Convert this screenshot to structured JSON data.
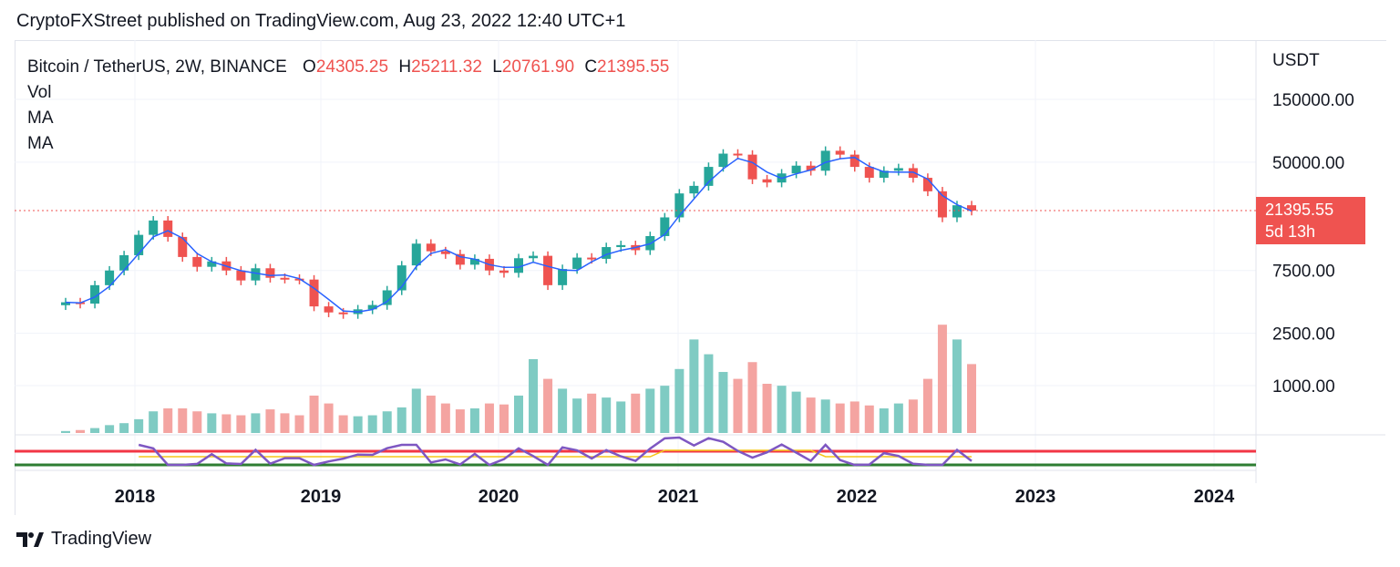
{
  "header": {
    "publisher_line": "CryptoFXStreet published on TradingView.com, Aug 23, 2022 12:40 UTC+1"
  },
  "legend": {
    "symbol": "Bitcoin / TetherUS, 2W, BINANCE",
    "open_label": "O",
    "open": "24305.25",
    "high_label": "H",
    "high": "25211.32",
    "low_label": "L",
    "low": "20761.90",
    "close_label": "C",
    "close": "21395.55",
    "indicators": [
      "Vol",
      "MA",
      "MA"
    ]
  },
  "price_axis": {
    "unit": "USDT",
    "ticks": [
      "150000.00",
      "50000.00",
      "7500.00",
      "2500.00",
      "1000.00"
    ]
  },
  "last_price": {
    "value": "21395.55",
    "countdown": "5d 13h"
  },
  "footer": {
    "brand": "TradingView"
  },
  "colors": {
    "up": "#26a69a",
    "down": "#ef5350",
    "up_vol": "#7fcbc3",
    "down_vol": "#f4a4a1",
    "ma": "#2962ff",
    "rsi": "#7e57c2",
    "rsi_ma": "#f5c518",
    "upper_band": "#f23645",
    "lower_band": "#2e7d32"
  },
  "chart_data": {
    "type": "candlestick",
    "title": "Bitcoin / TetherUS, 2W, BINANCE",
    "x_ticks": [
      "2018",
      "2019",
      "2020",
      "2021",
      "2022",
      "2023",
      "2024"
    ],
    "y_scale": "log",
    "price_series": [
      {
        "date": "2017-08",
        "close": 4300
      },
      {
        "date": "2017-09",
        "close": 4200
      },
      {
        "date": "2017-10",
        "close": 5800
      },
      {
        "date": "2017-11",
        "close": 7500
      },
      {
        "date": "2017-11b",
        "close": 9800
      },
      {
        "date": "2017-12",
        "close": 14000
      },
      {
        "date": "2017-12b",
        "close": 18000
      },
      {
        "date": "2018-01",
        "close": 13500
      },
      {
        "date": "2018-02",
        "close": 9500
      },
      {
        "date": "2018-03",
        "close": 8000
      },
      {
        "date": "2018-04",
        "close": 8800
      },
      {
        "date": "2018-05",
        "close": 7500
      },
      {
        "date": "2018-06",
        "close": 6300
      },
      {
        "date": "2018-07",
        "close": 7800
      },
      {
        "date": "2018-08",
        "close": 6600
      },
      {
        "date": "2018-09",
        "close": 6500
      },
      {
        "date": "2018-10",
        "close": 6400
      },
      {
        "date": "2018-11",
        "close": 4000
      },
      {
        "date": "2018-12",
        "close": 3600
      },
      {
        "date": "2019-01",
        "close": 3500
      },
      {
        "date": "2019-02",
        "close": 3800
      },
      {
        "date": "2019-03",
        "close": 4100
      },
      {
        "date": "2019-04",
        "close": 5300
      },
      {
        "date": "2019-05",
        "close": 8200
      },
      {
        "date": "2019-06",
        "close": 12000
      },
      {
        "date": "2019-07",
        "close": 10500
      },
      {
        "date": "2019-08",
        "close": 10000
      },
      {
        "date": "2019-09",
        "close": 8300
      },
      {
        "date": "2019-10",
        "close": 9200
      },
      {
        "date": "2019-11",
        "close": 7500
      },
      {
        "date": "2019-12",
        "close": 7200
      },
      {
        "date": "2020-01",
        "close": 9300
      },
      {
        "date": "2020-02",
        "close": 9700
      },
      {
        "date": "2020-03",
        "close": 5800
      },
      {
        "date": "2020-04",
        "close": 7700
      },
      {
        "date": "2020-05",
        "close": 9400
      },
      {
        "date": "2020-06",
        "close": 9200
      },
      {
        "date": "2020-07",
        "close": 11300
      },
      {
        "date": "2020-08",
        "close": 11700
      },
      {
        "date": "2020-09",
        "close": 10700
      },
      {
        "date": "2020-10",
        "close": 13700
      },
      {
        "date": "2020-11",
        "close": 19000
      },
      {
        "date": "2020-12",
        "close": 28900
      },
      {
        "date": "2021-01",
        "close": 33000
      },
      {
        "date": "2021-02",
        "close": 46000
      },
      {
        "date": "2021-03",
        "close": 58000
      },
      {
        "date": "2021-04",
        "close": 57000
      },
      {
        "date": "2021-05",
        "close": 37000
      },
      {
        "date": "2021-06",
        "close": 35000
      },
      {
        "date": "2021-07",
        "close": 41000
      },
      {
        "date": "2021-08",
        "close": 47000
      },
      {
        "date": "2021-09",
        "close": 43000
      },
      {
        "date": "2021-10",
        "close": 61000
      },
      {
        "date": "2021-11",
        "close": 57000
      },
      {
        "date": "2021-12",
        "close": 46000
      },
      {
        "date": "2022-01",
        "close": 38000
      },
      {
        "date": "2022-02",
        "close": 43000
      },
      {
        "date": "2022-03",
        "close": 45000
      },
      {
        "date": "2022-04",
        "close": 38000
      },
      {
        "date": "2022-05",
        "close": 30000
      },
      {
        "date": "2022-06",
        "close": 19000
      },
      {
        "date": "2022-07",
        "close": 23500
      },
      {
        "date": "2022-08",
        "close": 21395.55
      }
    ],
    "last_bar": {
      "open": 24305.25,
      "high": 25211.32,
      "low": 20761.9,
      "close": 21395.55
    },
    "volume_note": "volume bars, relative scale",
    "volume_values": [
      0.02,
      0.03,
      0.05,
      0.08,
      0.1,
      0.14,
      0.22,
      0.25,
      0.25,
      0.22,
      0.2,
      0.19,
      0.18,
      0.2,
      0.24,
      0.2,
      0.18,
      0.38,
      0.3,
      0.18,
      0.17,
      0.18,
      0.22,
      0.26,
      0.45,
      0.38,
      0.3,
      0.24,
      0.25,
      0.3,
      0.29,
      0.38,
      0.75,
      0.55,
      0.45,
      0.35,
      0.4,
      0.36,
      0.32,
      0.4,
      0.45,
      0.48,
      0.65,
      0.95,
      0.8,
      0.62,
      0.55,
      0.72,
      0.5,
      0.48,
      0.42,
      0.36,
      0.34,
      0.3,
      0.32,
      0.28,
      0.25,
      0.3,
      0.34,
      0.55,
      1.1,
      0.95,
      0.7
    ]
  }
}
